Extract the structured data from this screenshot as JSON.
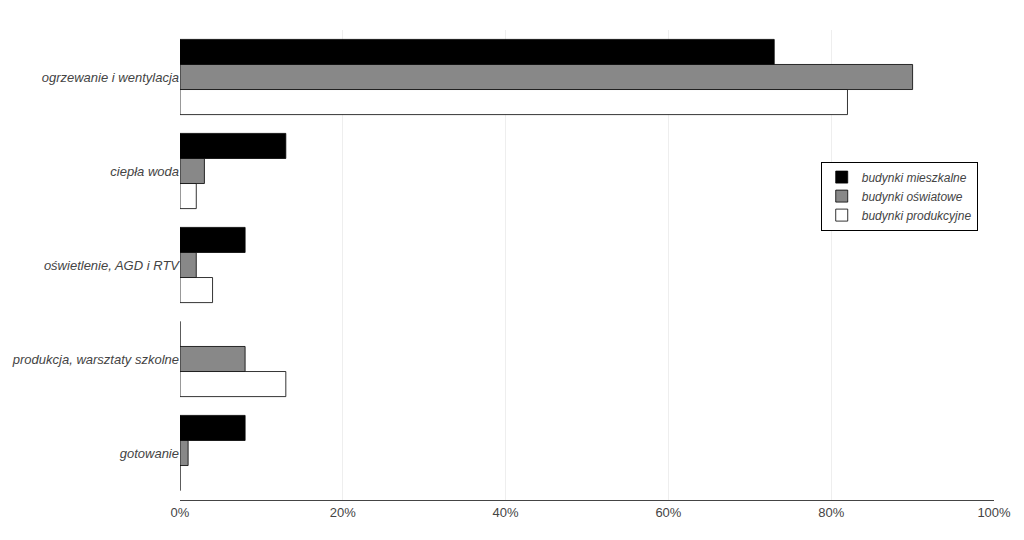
{
  "chart_data": {
    "type": "bar",
    "orientation": "horizontal",
    "categories": [
      "ogrzewanie i wentylacja",
      "ciepła woda",
      "oświetlenie, AGD i RTV",
      "produkcja, warsztaty szkolne",
      "gotowanie"
    ],
    "series": [
      {
        "name": "budynki mieszkalne",
        "color": "#000000",
        "values": [
          73,
          13,
          8,
          0,
          8
        ]
      },
      {
        "name": "budynki oświatowe",
        "color": "#888888",
        "values": [
          90,
          3,
          2,
          8,
          1
        ]
      },
      {
        "name": "budynki produkcyjne",
        "color": "#ffffff",
        "values": [
          82,
          2,
          4,
          13,
          0
        ]
      }
    ],
    "xlim": [
      0,
      100
    ],
    "xticks": [
      {
        "value": 0,
        "label": "0%"
      },
      {
        "value": 20,
        "label": "20%"
      },
      {
        "value": 40,
        "label": "40%"
      },
      {
        "value": 60,
        "label": "60%"
      },
      {
        "value": 80,
        "label": "80%"
      },
      {
        "value": 100,
        "label": "100%"
      }
    ],
    "grid": true,
    "legend": "right"
  }
}
